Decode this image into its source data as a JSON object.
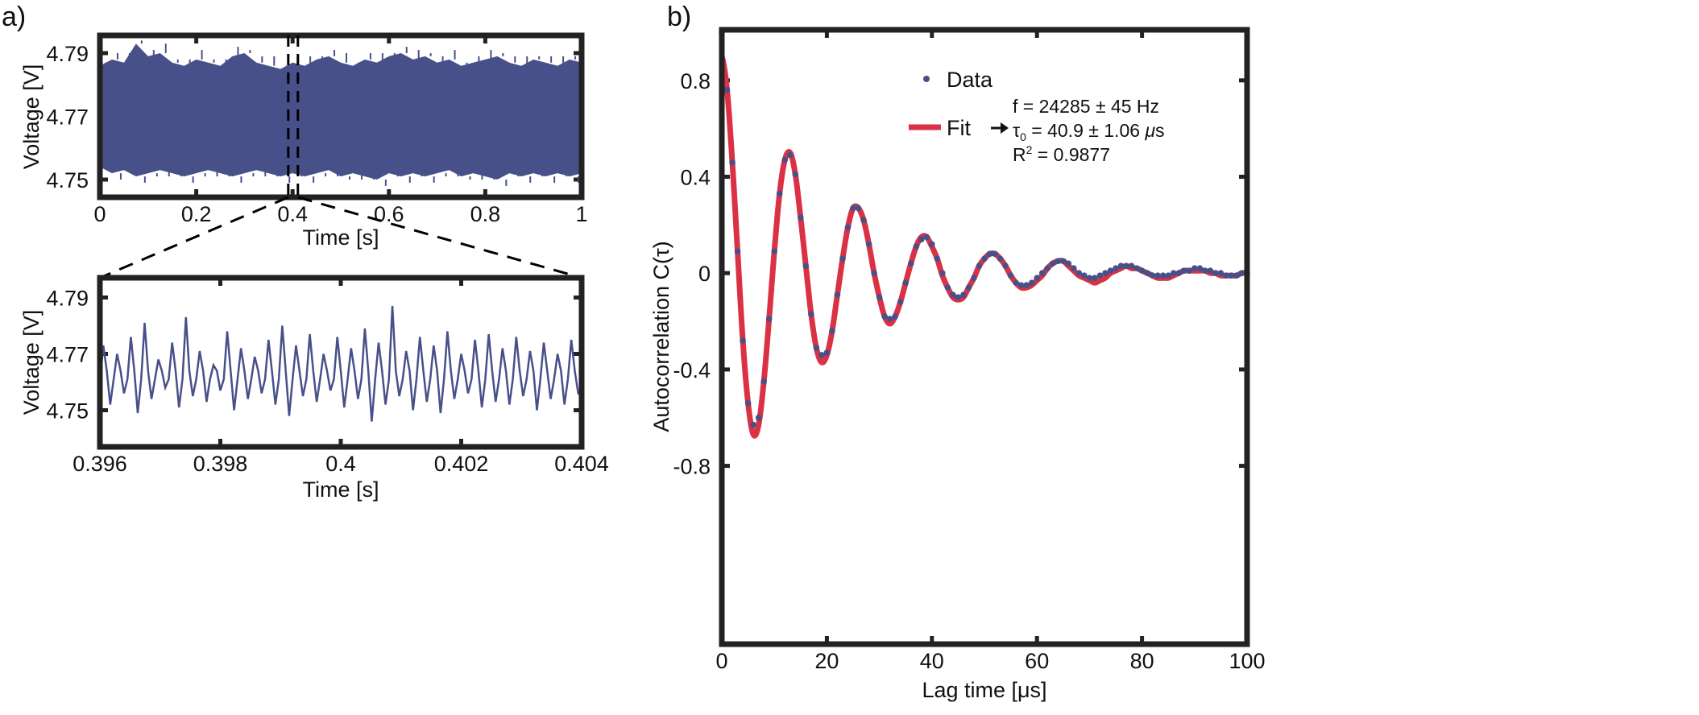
{
  "colors": {
    "data": "#48508a",
    "fit": "#db3144",
    "frame": "#222222",
    "zoom_lines": "#000000"
  },
  "chart_data": [
    {
      "panel_label": "a)",
      "type": "area",
      "xlabel": "Time [s]",
      "ylabel": "Voltage [V]",
      "xlim": [
        0,
        1
      ],
      "ylim": [
        4.7444,
        4.7956
      ],
      "xticks": [
        "0",
        "0.2",
        "0.4",
        "0.6",
        "0.8",
        "1"
      ],
      "yticks": [
        "4.75",
        "4.77",
        "4.79"
      ],
      "zoom_window": [
        0.391,
        0.411
      ],
      "x": [
        0,
        0.025,
        0.05,
        0.075,
        0.1,
        0.125,
        0.15,
        0.175,
        0.2,
        0.225,
        0.25,
        0.275,
        0.3,
        0.325,
        0.35,
        0.375,
        0.4,
        0.425,
        0.45,
        0.475,
        0.5,
        0.525,
        0.55,
        0.575,
        0.6,
        0.625,
        0.65,
        0.675,
        0.7,
        0.725,
        0.75,
        0.775,
        0.8,
        0.825,
        0.85,
        0.875,
        0.9,
        0.925,
        0.95,
        0.975,
        1
      ],
      "upper": [
        4.786,
        4.788,
        4.787,
        4.793,
        4.789,
        4.79,
        4.787,
        4.786,
        4.788,
        4.787,
        4.786,
        4.789,
        4.79,
        4.787,
        4.786,
        4.785,
        4.787,
        4.786,
        4.788,
        4.789,
        4.787,
        4.786,
        4.788,
        4.787,
        4.789,
        4.79,
        4.788,
        4.789,
        4.787,
        4.788,
        4.786,
        4.787,
        4.788,
        4.789,
        4.787,
        4.786,
        4.788,
        4.787,
        4.786,
        4.788,
        4.787
      ],
      "lower": [
        4.754,
        4.752,
        4.753,
        4.751,
        4.752,
        4.753,
        4.752,
        4.751,
        4.752,
        4.753,
        4.752,
        4.751,
        4.752,
        4.753,
        4.752,
        4.751,
        4.752,
        4.751,
        4.752,
        4.753,
        4.751,
        4.752,
        4.751,
        4.75,
        4.752,
        4.751,
        4.752,
        4.751,
        4.752,
        4.753,
        4.751,
        4.752,
        4.751,
        4.75,
        4.752,
        4.751,
        4.752,
        4.751,
        4.752,
        4.751,
        4.752
      ]
    },
    {
      "type": "line",
      "xlabel": "Time [s]",
      "ylabel": "Voltage [V]",
      "xlim": [
        0.396,
        0.404
      ],
      "ylim": [
        4.737,
        4.797
      ],
      "xticks": [
        "0.396",
        "0.398",
        "0.4",
        "0.402",
        "0.404"
      ],
      "yticks": [
        "4.75",
        "4.77",
        "4.79"
      ],
      "values": [
        4.76,
        4.773,
        4.764,
        4.752,
        4.761,
        4.77,
        4.764,
        4.756,
        4.761,
        4.776,
        4.764,
        4.749,
        4.761,
        4.781,
        4.764,
        4.754,
        4.761,
        4.768,
        4.764,
        4.758,
        4.761,
        4.774,
        4.764,
        4.751,
        4.761,
        4.783,
        4.764,
        4.755,
        4.761,
        4.771,
        4.764,
        4.753,
        4.761,
        4.766,
        4.764,
        4.757,
        4.761,
        4.778,
        4.764,
        4.75,
        4.761,
        4.772,
        4.764,
        4.754,
        4.761,
        4.769,
        4.764,
        4.756,
        4.761,
        4.775,
        4.764,
        4.752,
        4.761,
        4.78,
        4.764,
        4.748,
        4.761,
        4.773,
        4.764,
        4.755,
        4.761,
        4.777,
        4.764,
        4.753,
        4.761,
        4.77,
        4.764,
        4.757,
        4.761,
        4.776,
        4.764,
        4.751,
        4.761,
        4.772,
        4.764,
        4.754,
        4.761,
        4.779,
        4.764,
        4.746,
        4.761,
        4.774,
        4.764,
        4.752,
        4.761,
        4.787,
        4.764,
        4.755,
        4.761,
        4.771,
        4.764,
        4.75,
        4.761,
        4.776,
        4.764,
        4.753,
        4.761,
        4.773,
        4.764,
        4.749,
        4.761,
        4.778,
        4.764,
        4.754,
        4.761,
        4.77,
        4.764,
        4.756,
        4.761,
        4.775,
        4.764,
        4.751,
        4.761,
        4.777,
        4.764,
        4.753,
        4.761,
        4.772,
        4.764,
        4.752,
        4.761,
        4.776,
        4.764,
        4.755,
        4.761,
        4.771,
        4.764,
        4.75,
        4.761,
        4.774,
        4.764,
        4.754,
        4.761,
        4.77,
        4.764,
        4.752,
        4.761,
        4.775,
        4.764,
        4.756,
        4.755
      ]
    },
    {
      "panel_label": "b)",
      "type": "scatter",
      "xlabel": "Lag time [μs]",
      "ylabel": "Autocorrelation C(τ)",
      "xlim": [
        0,
        100
      ],
      "ylim": [
        -1.54,
        1.01
      ],
      "xticks": [
        "0",
        "20",
        "40",
        "60",
        "80",
        "100"
      ],
      "yticks": [
        "-0.8",
        "-0.4",
        "0",
        "0.4",
        "0.8"
      ],
      "legend": {
        "position": "top-center",
        "data_label": "Data",
        "fit_label": "Fit",
        "fit_params": [
          "f = 24285 ± 45 Hz",
          "τ",
          "0",
          " = 40.9 ± 1.06 ",
          "μ",
          "s",
          "R",
          "2",
          " = 0.9877"
        ]
      },
      "x_start": 0,
      "x_step": 1,
      "series": [
        {
          "name": "Data",
          "values": [
            1.0,
            0.76,
            0.46,
            0.09,
            -0.28,
            -0.54,
            -0.63,
            -0.6,
            -0.45,
            -0.19,
            0.09,
            0.33,
            0.47,
            0.49,
            0.41,
            0.23,
            0.03,
            -0.17,
            -0.31,
            -0.34,
            -0.33,
            -0.24,
            -0.09,
            0.06,
            0.19,
            0.27,
            0.27,
            0.22,
            0.12,
            0.0,
            -0.1,
            -0.18,
            -0.19,
            -0.18,
            -0.12,
            -0.04,
            0.04,
            0.11,
            0.14,
            0.15,
            0.12,
            0.06,
            0.0,
            -0.06,
            -0.09,
            -0.1,
            -0.09,
            -0.06,
            -0.02,
            0.03,
            0.06,
            0.08,
            0.08,
            0.06,
            0.03,
            -0.01,
            -0.04,
            -0.05,
            -0.05,
            -0.04,
            -0.02,
            0.0,
            0.02,
            0.04,
            0.05,
            0.05,
            0.04,
            0.02,
            0.0,
            -0.01,
            -0.02,
            -0.02,
            -0.01,
            0.0,
            0.01,
            0.02,
            0.03,
            0.03,
            0.03,
            0.02,
            0.01,
            0.0,
            -0.01,
            -0.01,
            -0.01,
            -0.01,
            0.0,
            0.0,
            0.01,
            0.01,
            0.02,
            0.02,
            0.01,
            0.01,
            0.0,
            0.0,
            -0.01,
            -0.01,
            -0.01,
            0.0,
            0.0
          ]
        },
        {
          "name": "Fit",
          "values": [
            0.9,
            0.76,
            0.46,
            0.09,
            -0.28,
            -0.54,
            -0.67,
            -0.63,
            -0.45,
            -0.19,
            0.09,
            0.33,
            0.47,
            0.5,
            0.41,
            0.23,
            0.03,
            -0.17,
            -0.31,
            -0.37,
            -0.34,
            -0.24,
            -0.09,
            0.06,
            0.19,
            0.27,
            0.27,
            0.22,
            0.12,
            0.0,
            -0.1,
            -0.18,
            -0.21,
            -0.18,
            -0.12,
            -0.04,
            0.04,
            0.11,
            0.15,
            0.15,
            0.11,
            0.06,
            -0.01,
            -0.06,
            -0.1,
            -0.11,
            -0.1,
            -0.06,
            -0.02,
            0.03,
            0.06,
            0.08,
            0.08,
            0.06,
            0.03,
            -0.01,
            -0.04,
            -0.06,
            -0.06,
            -0.05,
            -0.03,
            -0.01,
            0.02,
            0.04,
            0.05,
            0.05,
            0.03,
            0.01,
            -0.01,
            -0.02,
            -0.03,
            -0.04,
            -0.03,
            -0.02,
            0.0,
            0.01,
            0.02,
            0.03,
            0.02,
            0.02,
            0.01,
            0.0,
            -0.01,
            -0.02,
            -0.02,
            -0.02,
            -0.01,
            0.0,
            0.01,
            0.01,
            0.01,
            0.01,
            0.01,
            0.0,
            0.0,
            -0.01,
            -0.01,
            -0.01,
            -0.01,
            0.0,
            0.0
          ]
        }
      ]
    }
  ]
}
